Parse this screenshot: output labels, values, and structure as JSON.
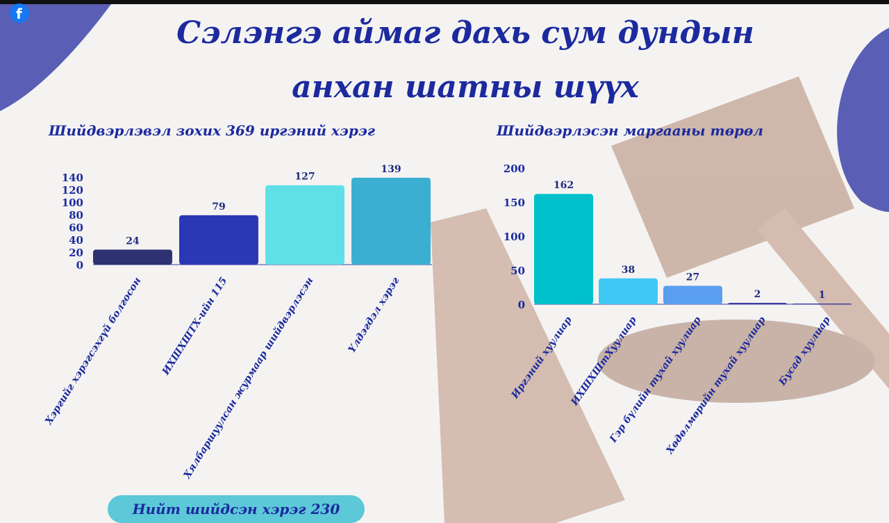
{
  "header": {
    "title_lines": [
      "Сэлэнгэ аймаг дахь сум дундын",
      "анхан шатны шүүх"
    ]
  },
  "footer": {
    "text": "Нийт шийдсэн хэрэг 230"
  },
  "chart_data": [
    {
      "type": "bar",
      "title": "Шийдвэрлэвэл зохих 369 иргэний хэрэг",
      "categories": [
        "Хэргийг хэрэгсэхгүй болгосон",
        "ИХШХШТХ-ийн 115",
        "Хялбаршуулсан журмаар шийдвэрлэсэн",
        "Үлдэгдэл хэрэг"
      ],
      "values": [
        24,
        79,
        127,
        139
      ],
      "colors": [
        "#2e3272",
        "#2b38b5",
        "#5fe0e6",
        "#3aafd2"
      ],
      "ylim": [
        0,
        140
      ],
      "yticks": [
        0,
        20,
        40,
        60,
        80,
        100,
        120,
        140
      ],
      "grid": false
    },
    {
      "type": "bar",
      "title": "Шийдвэрлэсэн маргааны төрөл",
      "categories": [
        "Иргэний хуулиар",
        "ИХШХШтХуулиар",
        "Гэр бүлийн тухай хуулиар",
        "Хөдөлмөрийн тухай хуулиар",
        "Бусад хуулиар"
      ],
      "values": [
        162,
        38,
        27,
        2,
        1
      ],
      "colors": [
        "#00c0cc",
        "#40c8f5",
        "#5a9ef0",
        "#3a3f9f",
        "#3a3f9f"
      ],
      "ylim": [
        0,
        200
      ],
      "yticks": [
        0,
        50,
        100,
        150,
        200
      ],
      "grid": false
    }
  ]
}
